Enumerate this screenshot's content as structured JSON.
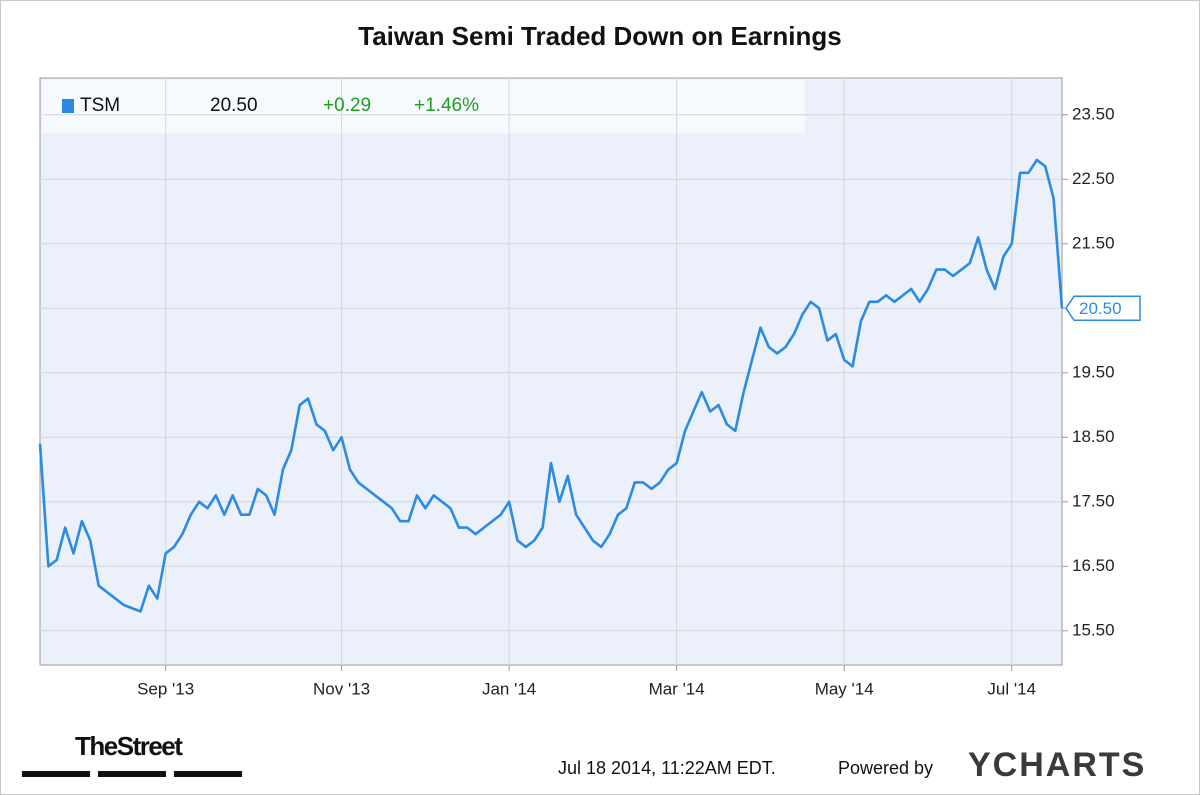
{
  "chart_data": {
    "type": "line",
    "title": "Taiwan Semi Traded Down on Earnings",
    "categories": [
      null,
      null,
      null,
      null,
      null,
      null,
      null,
      null,
      null,
      null,
      null,
      null,
      null,
      null,
      null,
      "Sep '13",
      null,
      null,
      null,
      null,
      null,
      null,
      null,
      null,
      null,
      null,
      null,
      null,
      null,
      null,
      null,
      null,
      null,
      null,
      null,
      null,
      "Nov '13",
      null,
      null,
      null,
      null,
      null,
      null,
      null,
      null,
      null,
      null,
      null,
      null,
      null,
      null,
      null,
      null,
      null,
      null,
      null,
      "Jan '14",
      null,
      null,
      null,
      null,
      null,
      null,
      null,
      null,
      null,
      null,
      null,
      null,
      null,
      null,
      null,
      null,
      null,
      null,
      null,
      "Mar '14",
      null,
      null,
      null,
      null,
      null,
      null,
      null,
      null,
      null,
      null,
      null,
      null,
      null,
      null,
      null,
      null,
      null,
      null,
      null,
      "May '14",
      null,
      null,
      null,
      null,
      null,
      null,
      null,
      null,
      null,
      null,
      null,
      null,
      null,
      null,
      null,
      null,
      null,
      null,
      null,
      "Jul '14",
      null,
      null,
      null,
      null,
      null,
      null
    ],
    "series": [
      {
        "name": "TSM",
        "color": "#2b8be3",
        "values": [
          18.4,
          16.5,
          16.6,
          17.1,
          16.7,
          17.2,
          16.9,
          16.2,
          16.1,
          16.0,
          15.9,
          15.85,
          15.8,
          16.2,
          16.0,
          16.7,
          16.8,
          17.0,
          17.3,
          17.5,
          17.4,
          17.6,
          17.3,
          17.6,
          17.3,
          17.3,
          17.7,
          17.6,
          17.3,
          18.0,
          18.3,
          19.0,
          19.1,
          18.7,
          18.6,
          18.3,
          18.5,
          18.0,
          17.8,
          17.7,
          17.6,
          17.5,
          17.4,
          17.2,
          17.2,
          17.6,
          17.4,
          17.6,
          17.5,
          17.4,
          17.1,
          17.1,
          17.0,
          17.1,
          17.2,
          17.3,
          17.5,
          16.9,
          16.8,
          16.9,
          17.1,
          18.1,
          17.5,
          17.9,
          17.3,
          17.1,
          16.9,
          16.8,
          17.0,
          17.3,
          17.4,
          17.8,
          17.8,
          17.7,
          17.8,
          18.0,
          18.1,
          18.6,
          18.9,
          19.2,
          18.9,
          19.0,
          18.7,
          18.6,
          19.2,
          19.7,
          20.2,
          19.9,
          19.8,
          19.9,
          20.1,
          20.4,
          20.6,
          20.5,
          20.0,
          20.1,
          19.7,
          19.6,
          20.3,
          20.6,
          20.6,
          20.7,
          20.6,
          20.7,
          20.8,
          20.6,
          20.8,
          21.1,
          21.1,
          21.0,
          21.1,
          21.2,
          21.6,
          21.1,
          20.8,
          21.3,
          21.5,
          22.6,
          22.6,
          22.8,
          22.7,
          22.2,
          20.5
        ],
        "last_value_label": "20.50",
        "change": "+0.29",
        "change_percent": "+1.46%",
        "change_color": "#1ea01e"
      }
    ],
    "ylim": [
      14.97,
      24.07
    ],
    "yticks": [
      {
        "value": 15.5,
        "label": "15.50"
      },
      {
        "value": 16.5,
        "label": "16.50"
      },
      {
        "value": 17.5,
        "label": "17.50"
      },
      {
        "value": 18.5,
        "label": "18.50"
      },
      {
        "value": 19.5,
        "label": "19.50"
      },
      {
        "value": 20.5,
        "label": "20.50"
      },
      {
        "value": 21.5,
        "label": "21.50"
      },
      {
        "value": 22.5,
        "label": "22.50"
      },
      {
        "value": 23.5,
        "label": "23.50"
      }
    ],
    "grid": true,
    "legend": "top-left",
    "source_logo": "TheStreet",
    "timestamp": "Jul 18 2014, 11:22AM EDT.",
    "credit": "Powered by",
    "brand": "YCHARTS"
  }
}
